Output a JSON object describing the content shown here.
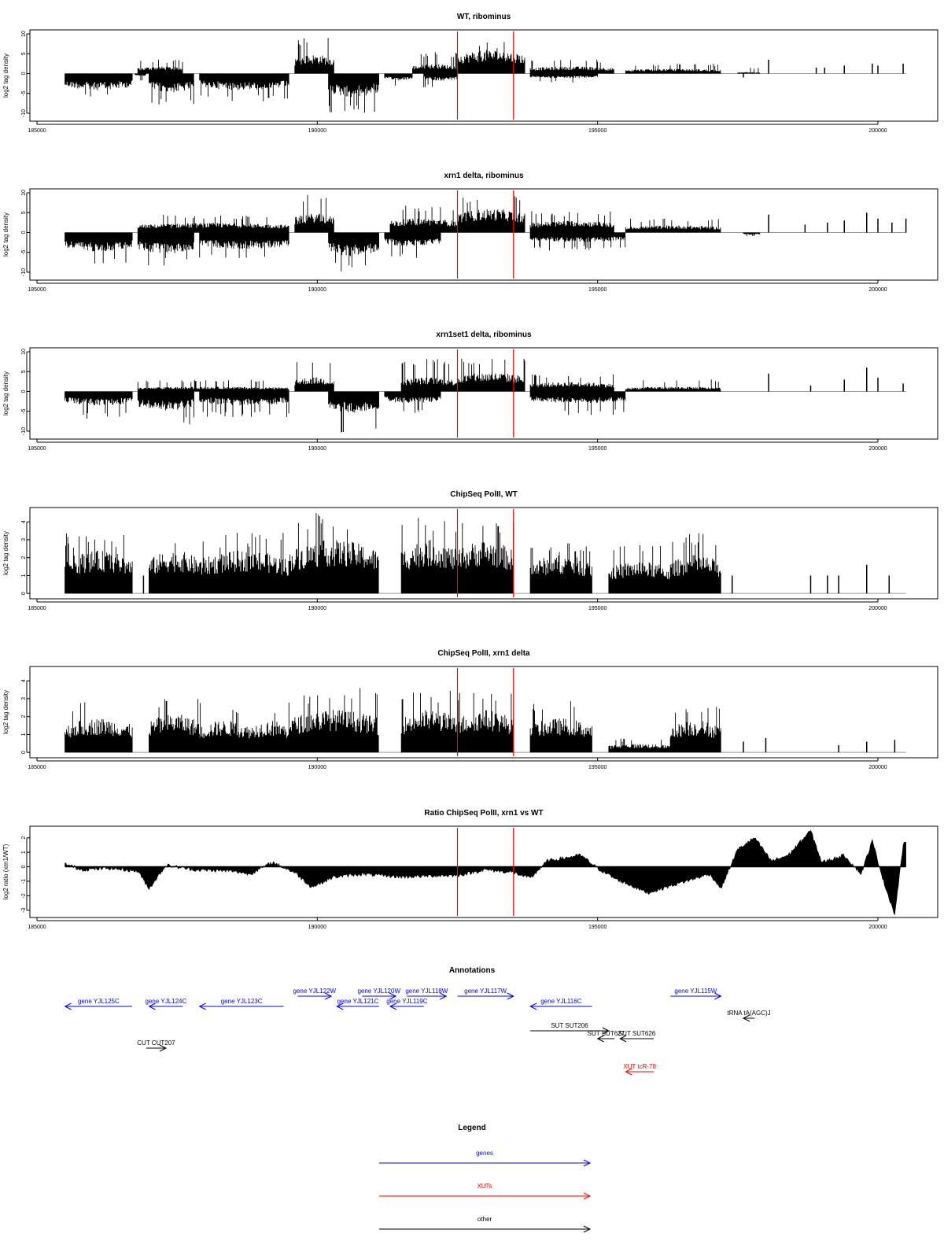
{
  "colors": {
    "marker": "#ff0000",
    "gene": "#0000ff",
    "xut": "#ff0000",
    "other": "#000000",
    "bars": "#000000",
    "frame": "#000000",
    "baseline": "#999999"
  },
  "chart_data": [
    {
      "type": "bar",
      "title": "WT, ribominus",
      "ylabel": "log2 tag density",
      "xlim": [
        185000,
        201000
      ],
      "ylim": [
        -12,
        11
      ],
      "xticks": [
        "185000",
        "190000",
        "195000",
        "200000"
      ],
      "yticks": [
        "-10",
        "-5",
        "0",
        "5",
        "10"
      ],
      "markers": [
        192500,
        193500
      ],
      "segments": [
        {
          "start": 185500,
          "end": 186700,
          "mean": -3.5,
          "max": -6.5
        },
        {
          "start": 186750,
          "end": 186950,
          "mean": -0.5,
          "max": -2
        },
        {
          "start": 186800,
          "end": 187600,
          "mean": 1.5,
          "max": 3.5
        },
        {
          "start": 187000,
          "end": 187800,
          "mean": -4,
          "max": -8
        },
        {
          "start": 187900,
          "end": 189500,
          "mean": -3.5,
          "max": -7
        },
        {
          "start": 189600,
          "end": 190300,
          "mean": 4,
          "max": 9.5
        },
        {
          "start": 190200,
          "end": 191100,
          "mean": -5,
          "max": -10
        },
        {
          "start": 191200,
          "end": 191700,
          "mean": -1.5,
          "max": -3.5
        },
        {
          "start": 191700,
          "end": 192500,
          "mean": 2,
          "max": 5.5
        },
        {
          "start": 191900,
          "end": 192500,
          "mean": -1.5,
          "max": -3.5
        },
        {
          "start": 192500,
          "end": 193700,
          "mean": 5,
          "max": 8.5
        },
        {
          "start": 193800,
          "end": 195300,
          "mean": 1.5,
          "max": 3.5
        },
        {
          "start": 193800,
          "end": 195000,
          "mean": -1,
          "max": -2.5
        },
        {
          "start": 195500,
          "end": 197200,
          "mean": 1,
          "max": 2.5
        },
        {
          "start": 197500,
          "end": 197900,
          "mean": 0.3,
          "max": 1.5
        }
      ],
      "spikes": [
        [
          198050,
          3.5
        ],
        [
          199400,
          2
        ],
        [
          199900,
          2.5
        ],
        [
          200000,
          2
        ],
        [
          200450,
          2.5
        ],
        [
          198900,
          1.5
        ],
        [
          199050,
          1.5
        ],
        [
          197600,
          -1
        ]
      ]
    },
    {
      "type": "bar",
      "title": "xrn1 delta, ribominus",
      "ylabel": "log2 tag density",
      "xlim": [
        185000,
        201000
      ],
      "ylim": [
        -12,
        11
      ],
      "xticks": [
        "185000",
        "190000",
        "195000",
        "200000"
      ],
      "yticks": [
        "-10",
        "-5",
        "0",
        "5",
        "10"
      ],
      "markers": [
        192500,
        193500
      ],
      "segments": [
        {
          "start": 185500,
          "end": 186700,
          "mean": -4,
          "max": -8
        },
        {
          "start": 186800,
          "end": 189500,
          "mean": 2,
          "max": 4.5
        },
        {
          "start": 186800,
          "end": 187800,
          "mean": -4.5,
          "max": -8.5
        },
        {
          "start": 187900,
          "end": 189500,
          "mean": -3.5,
          "max": -7
        },
        {
          "start": 189600,
          "end": 190300,
          "mean": 4,
          "max": 9.5
        },
        {
          "start": 190200,
          "end": 191100,
          "mean": -5,
          "max": -10
        },
        {
          "start": 191200,
          "end": 192200,
          "mean": -3,
          "max": -7
        },
        {
          "start": 191300,
          "end": 192500,
          "mean": 3,
          "max": 7
        },
        {
          "start": 192500,
          "end": 193700,
          "mean": 5,
          "max": 9.5
        },
        {
          "start": 193800,
          "end": 195300,
          "mean": 2.5,
          "max": 5.5
        },
        {
          "start": 193800,
          "end": 195500,
          "mean": -2,
          "max": -4.5
        },
        {
          "start": 195500,
          "end": 197200,
          "mean": 1.5,
          "max": 3.5
        },
        {
          "start": 197600,
          "end": 197900,
          "mean": -0.5,
          "max": -1
        }
      ],
      "spikes": [
        [
          198050,
          4.5
        ],
        [
          198700,
          2
        ],
        [
          199400,
          3
        ],
        [
          199800,
          5
        ],
        [
          200000,
          3.5
        ],
        [
          200250,
          2.5
        ],
        [
          200500,
          3.5
        ],
        [
          199100,
          2.5
        ]
      ]
    },
    {
      "type": "bar",
      "title": "xrn1set1 delta, ribominus",
      "ylabel": "log2 tag density",
      "xlim": [
        185000,
        201000
      ],
      "ylim": [
        -12,
        11
      ],
      "xticks": [
        "185000",
        "190000",
        "195000",
        "200000"
      ],
      "yticks": [
        "-10",
        "-5",
        "0",
        "5",
        "10"
      ],
      "markers": [
        192500,
        193500
      ],
      "segments": [
        {
          "start": 185500,
          "end": 186700,
          "mean": -3,
          "max": -7
        },
        {
          "start": 186800,
          "end": 189500,
          "mean": 1,
          "max": 3
        },
        {
          "start": 186800,
          "end": 187800,
          "mean": -4,
          "max": -8.5
        },
        {
          "start": 187900,
          "end": 189500,
          "mean": -3,
          "max": -6.5
        },
        {
          "start": 189600,
          "end": 190300,
          "mean": 3,
          "max": 8
        },
        {
          "start": 190200,
          "end": 191100,
          "mean": -4.5,
          "max": -10.5
        },
        {
          "start": 191200,
          "end": 192200,
          "mean": -2.5,
          "max": -6
        },
        {
          "start": 191500,
          "end": 192500,
          "mean": 3,
          "max": 8.5
        },
        {
          "start": 192500,
          "end": 193700,
          "mean": 4,
          "max": 9
        },
        {
          "start": 193800,
          "end": 195300,
          "mean": 2,
          "max": 4.5
        },
        {
          "start": 193800,
          "end": 195500,
          "mean": -2.5,
          "max": -6
        },
        {
          "start": 195500,
          "end": 197200,
          "mean": 1,
          "max": 3
        }
      ],
      "spikes": [
        [
          198050,
          4.5
        ],
        [
          199400,
          3
        ],
        [
          199800,
          6
        ],
        [
          200000,
          3.5
        ],
        [
          200450,
          2
        ],
        [
          198800,
          1.5
        ]
      ]
    },
    {
      "type": "bar",
      "title": "ChipSeq PolII, WT",
      "ylabel": "log2 tag density",
      "xlim": [
        185000,
        201000
      ],
      "ylim": [
        -0.3,
        4.8
      ],
      "xticks": [
        "185000",
        "190000",
        "195000",
        "200000"
      ],
      "yticks": [
        "0",
        "1",
        "2",
        "3",
        "4"
      ],
      "markers": [
        192500,
        193500
      ],
      "segments": [
        {
          "start": 185500,
          "end": 186700,
          "mean": 2.0,
          "max": 3.4
        },
        {
          "start": 187000,
          "end": 187900,
          "mean": 2.0,
          "max": 3.4
        },
        {
          "start": 187900,
          "end": 189500,
          "mean": 2.0,
          "max": 3.4
        },
        {
          "start": 189500,
          "end": 191100,
          "mean": 2.5,
          "max": 4.6
        },
        {
          "start": 191500,
          "end": 192500,
          "mean": 2.5,
          "max": 4.3
        },
        {
          "start": 192500,
          "end": 193500,
          "mean": 2.5,
          "max": 4.1
        },
        {
          "start": 193800,
          "end": 194900,
          "mean": 1.8,
          "max": 3.0
        },
        {
          "start": 195200,
          "end": 196300,
          "mean": 1.5,
          "max": 2.7
        },
        {
          "start": 196300,
          "end": 197200,
          "mean": 1.8,
          "max": 3.4
        }
      ],
      "spikes": [
        [
          186900,
          1
        ],
        [
          197400,
          1
        ],
        [
          198800,
          1
        ],
        [
          199100,
          1
        ],
        [
          199300,
          1
        ],
        [
          199800,
          1.6
        ],
        [
          200200,
          1
        ]
      ]
    },
    {
      "type": "bar",
      "title": "ChipSeq PolII, xrn1 delta",
      "ylabel": "log2 tag density",
      "xlim": [
        185000,
        201000
      ],
      "ylim": [
        -0.3,
        4.8
      ],
      "xticks": [
        "185000",
        "190000",
        "195000",
        "200000"
      ],
      "yticks": [
        "0",
        "1",
        "2",
        "3",
        "4"
      ],
      "markers": [
        192500,
        193500
      ],
      "segments": [
        {
          "start": 185500,
          "end": 186700,
          "mean": 1.6,
          "max": 2.9
        },
        {
          "start": 187000,
          "end": 187900,
          "mean": 1.8,
          "max": 3.3
        },
        {
          "start": 187900,
          "end": 188800,
          "mean": 1.5,
          "max": 2.8
        },
        {
          "start": 188800,
          "end": 189500,
          "mean": 1.5,
          "max": 2.8
        },
        {
          "start": 189500,
          "end": 191100,
          "mean": 2.0,
          "max": 3.6
        },
        {
          "start": 191500,
          "end": 192500,
          "mean": 2.0,
          "max": 3.5
        },
        {
          "start": 192500,
          "end": 193500,
          "mean": 2.0,
          "max": 3.6
        },
        {
          "start": 193800,
          "end": 194900,
          "mean": 1.6,
          "max": 2.9
        },
        {
          "start": 195200,
          "end": 196300,
          "mean": 0.4,
          "max": 0.8
        },
        {
          "start": 196300,
          "end": 197200,
          "mean": 1.5,
          "max": 2.6
        }
      ],
      "spikes": [
        [
          197600,
          0.6
        ],
        [
          198000,
          0.8
        ],
        [
          199300,
          0.4
        ],
        [
          199800,
          0.6
        ],
        [
          200300,
          0.7
        ]
      ]
    },
    {
      "type": "area",
      "title": "Ratio ChipSeq PolII, xrn1 vs WT",
      "ylabel": "log2 ratio (xrn1/WT)",
      "xlim": [
        185000,
        201000
      ],
      "ylim": [
        -3.5,
        2.8
      ],
      "xticks": [
        "185000",
        "190000",
        "195000",
        "200000"
      ],
      "yticks": [
        "-3",
        "-2",
        "-1",
        "0",
        "1",
        "2"
      ],
      "markers": [
        192500,
        193500
      ],
      "profile": [
        [
          185500,
          0.2
        ],
        [
          185800,
          -0.2
        ],
        [
          186300,
          -0.1
        ],
        [
          186800,
          -0.3
        ],
        [
          187000,
          -1.5
        ],
        [
          187300,
          0.1
        ],
        [
          187800,
          -0.2
        ],
        [
          188500,
          -0.3
        ],
        [
          188800,
          -0.5
        ],
        [
          189200,
          0.3
        ],
        [
          189600,
          -0.4
        ],
        [
          189900,
          -1.4
        ],
        [
          190300,
          -0.7
        ],
        [
          190800,
          -0.5
        ],
        [
          191500,
          -0.7
        ],
        [
          192200,
          -0.6
        ],
        [
          192500,
          -0.6
        ],
        [
          193000,
          -0.2
        ],
        [
          193500,
          -0.4
        ],
        [
          193800,
          -0.8
        ],
        [
          194100,
          0.4
        ],
        [
          194700,
          0.8
        ],
        [
          195000,
          -0.1
        ],
        [
          195300,
          -0.8
        ],
        [
          195900,
          -1.8
        ],
        [
          196400,
          -1.2
        ],
        [
          197000,
          -0.5
        ],
        [
          197200,
          -1.5
        ],
        [
          197500,
          1.2
        ],
        [
          197800,
          2.0
        ],
        [
          198100,
          0.4
        ],
        [
          198400,
          0.8
        ],
        [
          198800,
          2.5
        ],
        [
          199000,
          0.3
        ],
        [
          199400,
          0.8
        ],
        [
          199700,
          -0.5
        ],
        [
          199900,
          1.8
        ],
        [
          200100,
          -1.0
        ],
        [
          200300,
          -3.3
        ],
        [
          200450,
          1.5
        ],
        [
          200500,
          1.7
        ]
      ]
    }
  ],
  "annotations": {
    "title": "Annotations",
    "items": [
      {
        "label": "gene YJL125C",
        "start": 185500,
        "end": 186700,
        "dir": "left",
        "kind": "gene",
        "row": 0
      },
      {
        "label": "gene YJL124C",
        "start": 187000,
        "end": 187600,
        "dir": "left",
        "kind": "gene",
        "row": 0
      },
      {
        "label": "gene YJL123C",
        "start": 187900,
        "end": 189400,
        "dir": "left",
        "kind": "gene",
        "row": 0
      },
      {
        "label": "gene YJL122W",
        "start": 189650,
        "end": 190250,
        "dir": "right",
        "kind": "gene",
        "row": -1
      },
      {
        "label": "gene YJL121C",
        "start": 190350,
        "end": 191100,
        "dir": "left",
        "kind": "gene",
        "row": 0
      },
      {
        "label": "gene YJL120W",
        "start": 190800,
        "end": 191400,
        "dir": "right",
        "kind": "gene",
        "row": -1
      },
      {
        "label": "gene YJL119C",
        "start": 191300,
        "end": 191900,
        "dir": "left",
        "kind": "gene",
        "row": 0
      },
      {
        "label": "gene YJL118W",
        "start": 191600,
        "end": 192300,
        "dir": "right",
        "kind": "gene",
        "row": -1
      },
      {
        "label": "gene YJL117W",
        "start": 192500,
        "end": 193500,
        "dir": "right",
        "kind": "gene",
        "row": -1
      },
      {
        "label": "gene YJL116C",
        "start": 193800,
        "end": 194900,
        "dir": "left",
        "kind": "gene",
        "row": 0
      },
      {
        "label": "gene YJL115W",
        "start": 196300,
        "end": 197200,
        "dir": "right",
        "kind": "gene",
        "row": -1
      },
      {
        "label": "tRNA tA(AGC)J",
        "start": 197600,
        "end": 197800,
        "dir": "left",
        "kind": "other",
        "row": 1
      },
      {
        "label": "SUT SUT206",
        "start": 193800,
        "end": 195200,
        "dir": "right",
        "kind": "other",
        "row": 2
      },
      {
        "label": "SUT SUT627",
        "start": 195000,
        "end": 195300,
        "dir": "left",
        "kind": "other",
        "row": 3
      },
      {
        "label": "SUT SUT626",
        "start": 195400,
        "end": 196000,
        "dir": "left",
        "kind": "other",
        "row": 3
      },
      {
        "label": "CUT CUT207",
        "start": 186950,
        "end": 187300,
        "dir": "right",
        "kind": "other",
        "row": 4
      },
      {
        "label": "XUT tcR-78",
        "start": 195500,
        "end": 196000,
        "dir": "left",
        "kind": "xut",
        "row": 6
      }
    ]
  },
  "legend": {
    "title": "Legend",
    "items": [
      {
        "label": "genes",
        "kind": "gene"
      },
      {
        "label": "XUTs",
        "kind": "xut"
      },
      {
        "label": "other",
        "kind": "other"
      }
    ]
  }
}
